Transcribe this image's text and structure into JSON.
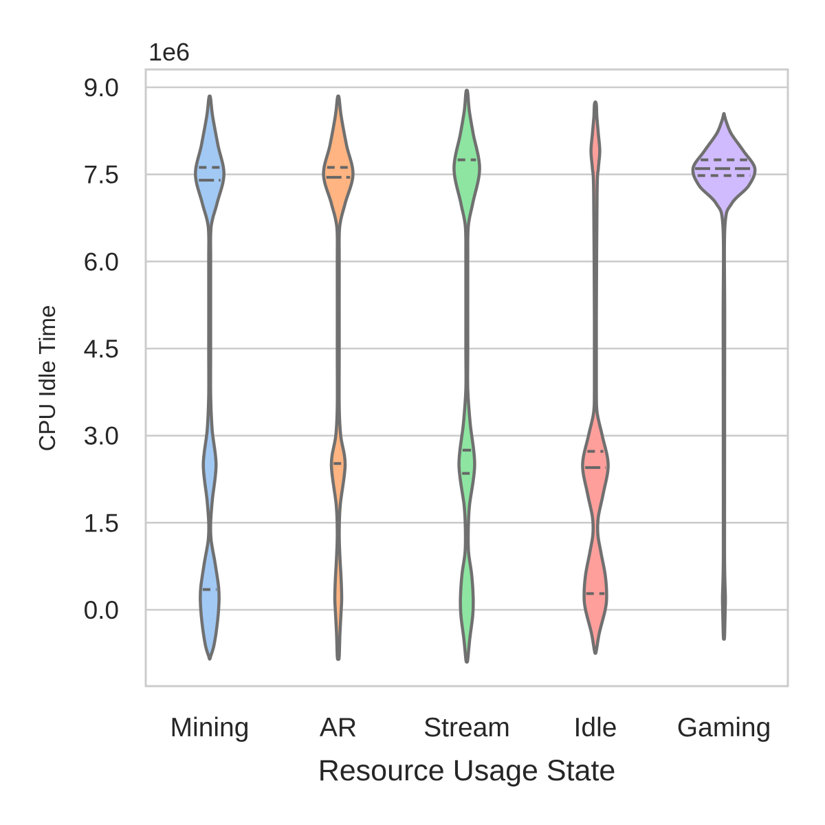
{
  "chart_data": {
    "type": "violin",
    "xlabel": "Resource Usage State",
    "ylabel": "CPU Idle Time",
    "y_offset_label": "1e6",
    "ylim": [
      -1.3,
      9.3
    ],
    "y_ticks": [
      "0.0",
      "1.5",
      "3.0",
      "4.5",
      "6.0",
      "7.5",
      "9.0"
    ],
    "grid": true,
    "inner": "quartile",
    "categories": [
      "Mining",
      "AR",
      "Stream",
      "Idle",
      "Gaming"
    ],
    "violins": [
      {
        "name": "Mining",
        "color": "#a1c9f4",
        "quartiles": [
          0.35,
          7.4,
          7.62
        ],
        "density": [
          [
            -0.8,
            0.2
          ],
          [
            -0.6,
            0.9
          ],
          [
            -0.2,
            1.6
          ],
          [
            0.15,
            1.9
          ],
          [
            0.4,
            1.8
          ],
          [
            0.8,
            1.1
          ],
          [
            1.2,
            0.3
          ],
          [
            1.5,
            0.2
          ],
          [
            1.9,
            0.55
          ],
          [
            2.5,
            1.3
          ],
          [
            3.1,
            0.5
          ],
          [
            3.7,
            0.2
          ],
          [
            4.5,
            0.2
          ],
          [
            6.0,
            0.2
          ],
          [
            6.6,
            0.3
          ],
          [
            7.0,
            1.5
          ],
          [
            7.5,
            2.9
          ],
          [
            8.0,
            1.7
          ],
          [
            8.5,
            0.6
          ],
          [
            8.8,
            0.2
          ]
        ]
      },
      {
        "name": "AR",
        "color": "#ffb482",
        "quartiles": [
          2.52,
          7.45,
          7.62
        ],
        "density": [
          [
            -0.8,
            0.2
          ],
          [
            -0.4,
            0.35
          ],
          [
            0.0,
            0.6
          ],
          [
            0.2,
            0.7
          ],
          [
            0.5,
            0.6
          ],
          [
            0.9,
            0.35
          ],
          [
            1.3,
            0.2
          ],
          [
            1.8,
            0.4
          ],
          [
            2.5,
            1.4
          ],
          [
            3.0,
            0.5
          ],
          [
            3.5,
            0.2
          ],
          [
            4.5,
            0.2
          ],
          [
            6.0,
            0.2
          ],
          [
            6.6,
            0.3
          ],
          [
            7.0,
            1.4
          ],
          [
            7.5,
            3.0
          ],
          [
            8.0,
            1.7
          ],
          [
            8.5,
            0.6
          ],
          [
            8.8,
            0.2
          ]
        ]
      },
      {
        "name": "Stream",
        "color": "#8de5a1",
        "quartiles": [
          2.35,
          2.75,
          7.75
        ],
        "density": [
          [
            -0.85,
            0.2
          ],
          [
            -0.5,
            0.6
          ],
          [
            -0.1,
            1.2
          ],
          [
            0.2,
            1.3
          ],
          [
            0.6,
            1.0
          ],
          [
            1.0,
            0.35
          ],
          [
            1.4,
            0.3
          ],
          [
            1.8,
            0.55
          ],
          [
            2.5,
            1.6
          ],
          [
            3.2,
            0.7
          ],
          [
            3.8,
            0.2
          ],
          [
            4.5,
            0.2
          ],
          [
            6.0,
            0.2
          ],
          [
            6.6,
            0.3
          ],
          [
            7.0,
            1.2
          ],
          [
            7.6,
            2.6
          ],
          [
            8.2,
            1.3
          ],
          [
            8.6,
            0.5
          ],
          [
            8.9,
            0.2
          ]
        ]
      },
      {
        "name": "Idle",
        "color": "#ff9f9b",
        "quartiles": [
          0.28,
          2.45,
          2.73
        ],
        "density": [
          [
            -0.7,
            0.2
          ],
          [
            -0.4,
            0.8
          ],
          [
            0.0,
            2.0
          ],
          [
            0.25,
            2.3
          ],
          [
            0.6,
            2.0
          ],
          [
            1.0,
            1.1
          ],
          [
            1.3,
            0.5
          ],
          [
            1.6,
            0.6
          ],
          [
            2.0,
            1.6
          ],
          [
            2.5,
            2.6
          ],
          [
            3.0,
            1.4
          ],
          [
            3.4,
            0.35
          ],
          [
            3.8,
            0.2
          ],
          [
            5.0,
            0.2
          ],
          [
            7.2,
            0.35
          ],
          [
            7.6,
            0.6
          ],
          [
            7.9,
            0.9
          ],
          [
            8.2,
            0.6
          ],
          [
            8.5,
            0.3
          ],
          [
            8.7,
            0.2
          ]
        ]
      },
      {
        "name": "Gaming",
        "color": "#d0bbff",
        "quartiles": [
          7.48,
          7.6,
          7.75
        ],
        "density": [
          [
            -0.45,
            0.12
          ],
          [
            0.0,
            0.25
          ],
          [
            0.2,
            0.3
          ],
          [
            0.5,
            0.2
          ],
          [
            0.9,
            0.12
          ],
          [
            2.0,
            0.12
          ],
          [
            5.0,
            0.15
          ],
          [
            6.6,
            0.2
          ],
          [
            7.0,
            1.6
          ],
          [
            7.3,
            5.0
          ],
          [
            7.6,
            6.3
          ],
          [
            7.9,
            4.0
          ],
          [
            8.2,
            1.5
          ],
          [
            8.4,
            0.5
          ],
          [
            8.5,
            0.15
          ]
        ]
      }
    ]
  }
}
